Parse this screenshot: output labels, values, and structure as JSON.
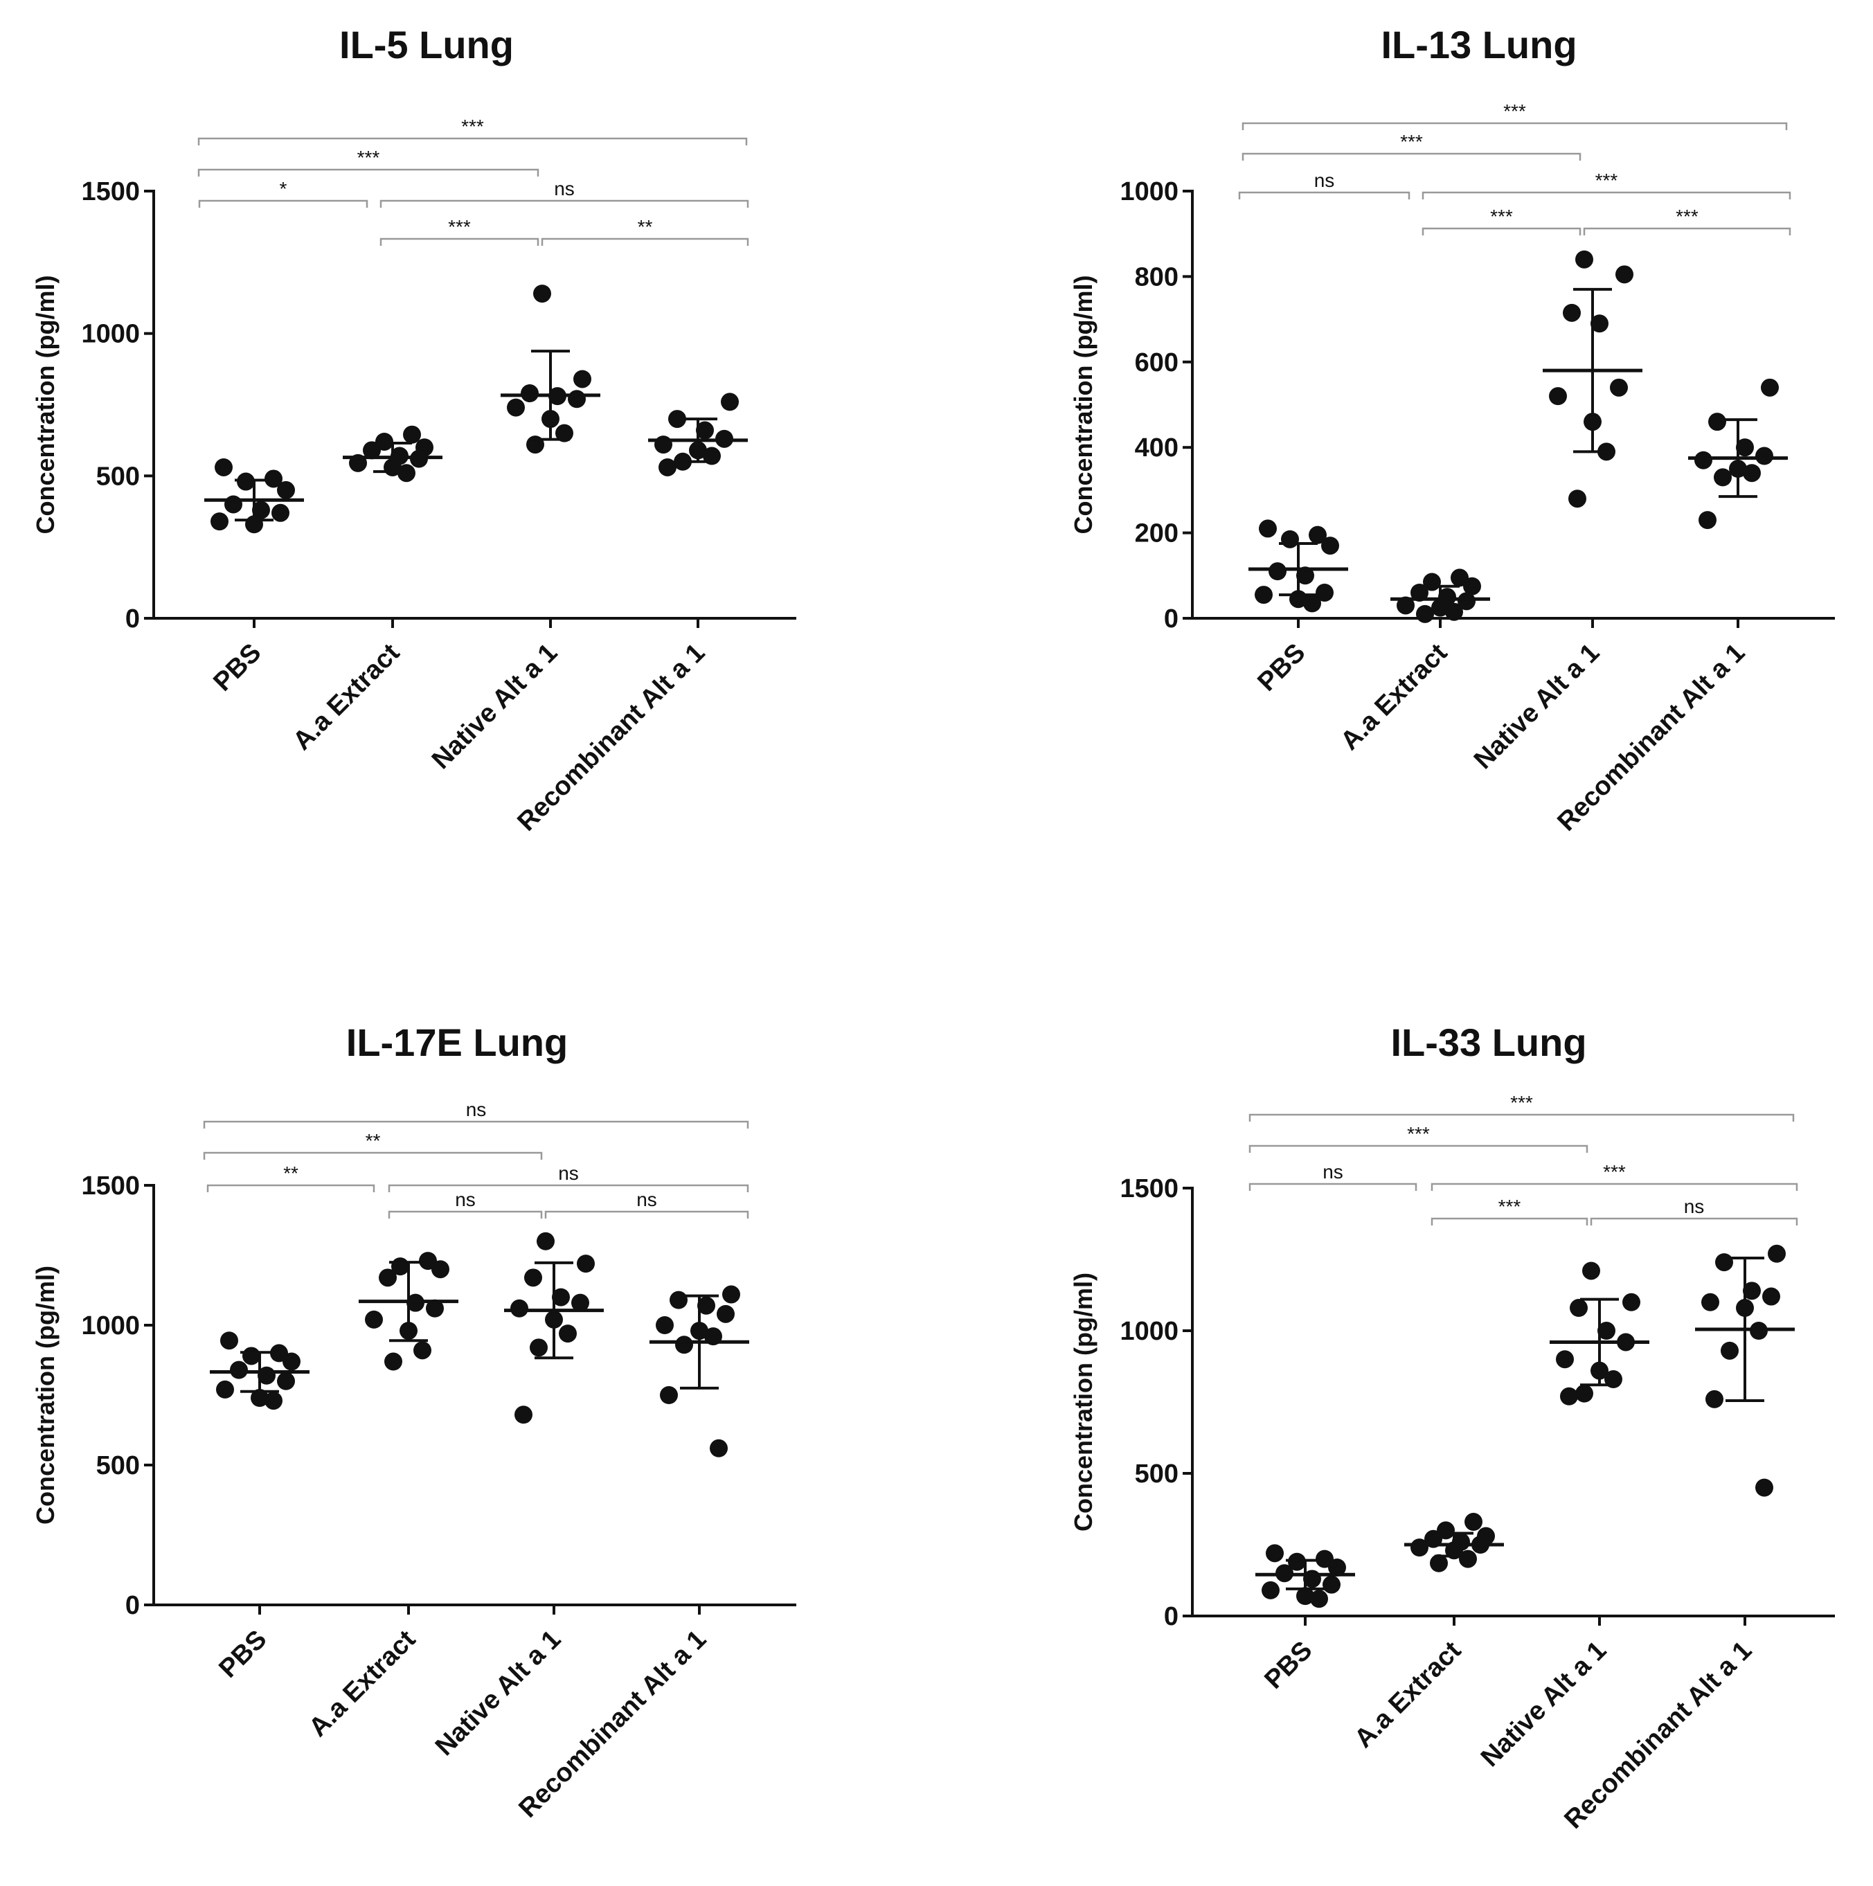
{
  "chart_data": [
    {
      "type": "scatter",
      "title": "IL-5 Lung",
      "ylabel": "Concentration (pg/ml)",
      "xlabel": "",
      "categories": [
        "PBS",
        "A.a Extract",
        "Native Alt a 1",
        "Recombinant Alt a 1"
      ],
      "ylim": [
        0,
        1500
      ],
      "yticks": [
        0,
        500,
        1000,
        1500
      ],
      "series": [
        {
          "name": "PBS",
          "values": [
            530,
            490,
            480,
            450,
            400,
            380,
            370,
            340,
            330
          ],
          "mean": 415,
          "sd": 70
        },
        {
          "name": "A.a Extract",
          "values": [
            645,
            620,
            600,
            590,
            570,
            560,
            545,
            530,
            510
          ],
          "mean": 565,
          "sd": 50
        },
        {
          "name": "Native Alt a 1",
          "values": [
            1140,
            840,
            790,
            780,
            770,
            740,
            700,
            650,
            610
          ],
          "mean": 783,
          "sd": 155
        },
        {
          "name": "Recombinant Alt a 1",
          "values": [
            760,
            700,
            660,
            630,
            610,
            590,
            570,
            550,
            530
          ],
          "mean": 625,
          "sd": 75
        }
      ],
      "comparisons": [
        {
          "from": 0,
          "to": 3,
          "label": "***"
        },
        {
          "from": 0,
          "to": 2,
          "label": "***"
        },
        {
          "from": 0,
          "to": 1,
          "label": "*"
        },
        {
          "from": 1,
          "to": 3,
          "label": "ns"
        },
        {
          "from": 1,
          "to": 2,
          "label": "***"
        },
        {
          "from": 2,
          "to": 3,
          "label": "**"
        }
      ]
    },
    {
      "type": "scatter",
      "title": "IL-13 Lung",
      "ylabel": "Concentration (pg/ml)",
      "xlabel": "",
      "categories": [
        "PBS",
        "A.a Extract",
        "Native Alt a 1",
        "Recombinant Alt a 1"
      ],
      "ylim": [
        0,
        1000
      ],
      "yticks": [
        0,
        200,
        400,
        600,
        800,
        1000
      ],
      "series": [
        {
          "name": "PBS",
          "values": [
            210,
            195,
            185,
            170,
            110,
            100,
            60,
            55,
            45,
            35
          ],
          "mean": 115,
          "sd": 60
        },
        {
          "name": "A.a Extract",
          "values": [
            95,
            85,
            75,
            60,
            50,
            40,
            30,
            25,
            15,
            10
          ],
          "mean": 45,
          "sd": 30
        },
        {
          "name": "Native Alt a 1",
          "values": [
            840,
            805,
            715,
            690,
            540,
            520,
            460,
            390,
            280
          ],
          "mean": 580,
          "sd": 190
        },
        {
          "name": "Recombinant Alt a 1",
          "values": [
            540,
            460,
            400,
            380,
            370,
            350,
            340,
            330,
            230
          ],
          "mean": 375,
          "sd": 90
        }
      ],
      "comparisons": [
        {
          "from": 0,
          "to": 3,
          "label": "***"
        },
        {
          "from": 0,
          "to": 2,
          "label": "***"
        },
        {
          "from": 0,
          "to": 1,
          "label": "ns"
        },
        {
          "from": 1,
          "to": 3,
          "label": "***"
        },
        {
          "from": 1,
          "to": 2,
          "label": "***"
        },
        {
          "from": 2,
          "to": 3,
          "label": "***"
        }
      ]
    },
    {
      "type": "scatter",
      "title": "IL-17E Lung",
      "ylabel": "Concentration (pg/ml)",
      "xlabel": "",
      "categories": [
        "PBS",
        "A.a Extract",
        "Native Alt a 1",
        "Recombinant Alt a 1"
      ],
      "ylim": [
        0,
        1500
      ],
      "yticks": [
        0,
        500,
        1000,
        1500
      ],
      "series": [
        {
          "name": "PBS",
          "values": [
            945,
            900,
            890,
            870,
            840,
            820,
            800,
            770,
            740,
            730
          ],
          "mean": 833,
          "sd": 70
        },
        {
          "name": "A.a Extract",
          "values": [
            1230,
            1210,
            1200,
            1170,
            1080,
            1060,
            1020,
            980,
            910,
            870
          ],
          "mean": 1085,
          "sd": 140
        },
        {
          "name": "Native Alt a 1",
          "values": [
            1300,
            1220,
            1170,
            1100,
            1080,
            1060,
            1020,
            970,
            920,
            680
          ],
          "mean": 1053,
          "sd": 170
        },
        {
          "name": "Recombinant Alt a 1",
          "values": [
            1110,
            1090,
            1070,
            1040,
            1000,
            980,
            960,
            930,
            750,
            560
          ],
          "mean": 940,
          "sd": 165
        }
      ],
      "comparisons": [
        {
          "from": 0,
          "to": 3,
          "label": "ns"
        },
        {
          "from": 0,
          "to": 2,
          "label": "**"
        },
        {
          "from": 0,
          "to": 1,
          "label": "**"
        },
        {
          "from": 1,
          "to": 3,
          "label": "ns"
        },
        {
          "from": 1,
          "to": 2,
          "label": "ns"
        },
        {
          "from": 2,
          "to": 3,
          "label": "ns"
        }
      ]
    },
    {
      "type": "scatter",
      "title": "IL-33 Lung",
      "ylabel": "Concentration (pg/ml)",
      "xlabel": "",
      "categories": [
        "PBS",
        "A.a Extract",
        "Native Alt a 1",
        "Recombinant Alt a 1"
      ],
      "ylim": [
        0,
        1500
      ],
      "yticks": [
        0,
        500,
        1000,
        1500
      ],
      "series": [
        {
          "name": "PBS",
          "values": [
            220,
            200,
            190,
            170,
            150,
            130,
            110,
            90,
            70,
            60
          ],
          "mean": 145,
          "sd": 50
        },
        {
          "name": "A.a Extract",
          "values": [
            330,
            300,
            280,
            270,
            260,
            250,
            240,
            230,
            200,
            185
          ],
          "mean": 250,
          "sd": 40
        },
        {
          "name": "Native Alt a 1",
          "values": [
            1210,
            1100,
            1080,
            1000,
            960,
            900,
            860,
            830,
            780,
            770
          ],
          "mean": 960,
          "sd": 150
        },
        {
          "name": "Recombinant Alt a 1",
          "values": [
            1270,
            1240,
            1140,
            1120,
            1100,
            1080,
            1000,
            930,
            760,
            450
          ],
          "mean": 1005,
          "sd": 250
        }
      ],
      "comparisons": [
        {
          "from": 0,
          "to": 3,
          "label": "***"
        },
        {
          "from": 0,
          "to": 2,
          "label": "***"
        },
        {
          "from": 0,
          "to": 1,
          "label": "ns"
        },
        {
          "from": 1,
          "to": 3,
          "label": "***"
        },
        {
          "from": 1,
          "to": 2,
          "label": "***"
        },
        {
          "from": 2,
          "to": 3,
          "label": "ns"
        }
      ]
    }
  ]
}
